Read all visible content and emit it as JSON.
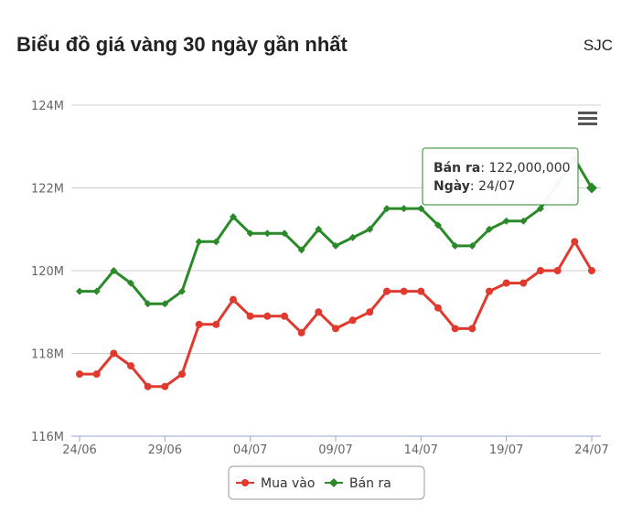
{
  "header": {
    "title": "Biểu đồ giá vàng 30 ngày gần nhất",
    "brand": "SJC"
  },
  "menu_icon": "hamburger-menu-icon",
  "chart_data": {
    "type": "line",
    "x": [
      "24/06",
      "25/06",
      "26/06",
      "27/06",
      "28/06",
      "29/06",
      "30/06",
      "01/07",
      "02/07",
      "03/07",
      "04/07",
      "05/07",
      "06/07",
      "07/07",
      "08/07",
      "09/07",
      "10/07",
      "11/07",
      "12/07",
      "13/07",
      "14/07",
      "15/07",
      "16/07",
      "17/07",
      "18/07",
      "19/07",
      "20/07",
      "21/07",
      "22/07",
      "23/07",
      "24/07"
    ],
    "x_ticks": [
      "24/06",
      "29/06",
      "04/07",
      "09/07",
      "14/07",
      "19/07",
      "24/07"
    ],
    "y_ticks": [
      "116M",
      "118M",
      "120M",
      "122M",
      "124M"
    ],
    "ylim": [
      116000000,
      124000000
    ],
    "grid": true,
    "legend": "bottom-center",
    "series": [
      {
        "name": "Mua vào",
        "color": "#e03a2f",
        "marker": "circle",
        "values": [
          117500000,
          117500000,
          118000000,
          117700000,
          117200000,
          117200000,
          117500000,
          118700000,
          118700000,
          119300000,
          118900000,
          118900000,
          118900000,
          118500000,
          119000000,
          118600000,
          118800000,
          119000000,
          119500000,
          119500000,
          119500000,
          119100000,
          118600000,
          118600000,
          119500000,
          119700000,
          119700000,
          120000000,
          120000000,
          120700000,
          120000000
        ]
      },
      {
        "name": "Bán ra",
        "color": "#2a8a2a",
        "marker": "diamond",
        "values": [
          119500000,
          119500000,
          120000000,
          119700000,
          119200000,
          119200000,
          119500000,
          120700000,
          120700000,
          121300000,
          120900000,
          120900000,
          120900000,
          120500000,
          121000000,
          120600000,
          120800000,
          121000000,
          121500000,
          121500000,
          121500000,
          121100000,
          120600000,
          120600000,
          121000000,
          121200000,
          121200000,
          121500000,
          122100000,
          122700000,
          122000000
        ]
      }
    ],
    "tooltip": {
      "series_label": "Bán ra",
      "value_text": "122,000,000",
      "date_label": "Ngày",
      "date_text": "24/07"
    }
  }
}
